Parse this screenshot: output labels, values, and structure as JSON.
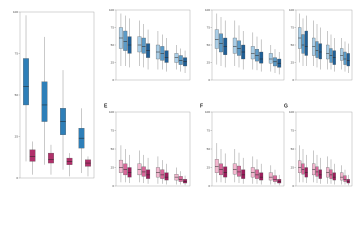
{
  "chart_data": [
    {
      "type": "box",
      "ylim": [
        0,
        100
      ],
      "yticks": [
        0,
        25,
        50,
        75,
        100
      ],
      "series": [
        {
          "color": "#2e7fb8",
          "values": [
            [
              10,
              44,
              55,
              72,
              98
            ],
            [
              8,
              34,
              44,
              58,
              85
            ],
            [
              5,
              26,
              34,
              42,
              65
            ],
            [
              3,
              18,
              24,
              30,
              42
            ]
          ]
        },
        {
          "color": "#b0306a",
          "values": [
            [
              2,
              10,
              13,
              17,
              22
            ],
            [
              2,
              9,
              11,
              15,
              20
            ],
            [
              1,
              8,
              10,
              12,
              15
            ],
            [
              1,
              7,
              9,
              11,
              13
            ]
          ]
        }
      ]
    },
    {
      "type": "box",
      "ylim": [
        0,
        100
      ],
      "yticks": [
        0,
        25,
        50,
        75,
        100
      ],
      "series": [
        {
          "color": "#a9cde6",
          "values": [
            [
              20,
              45,
              60,
              75,
              95
            ],
            [
              20,
              40,
              50,
              62,
              85
            ],
            [
              15,
              30,
              40,
              50,
              70
            ],
            [
              15,
              25,
              32,
              38,
              50
            ]
          ]
        },
        {
          "color": "#5b9bc8",
          "values": [
            [
              20,
              42,
              55,
              70,
              92
            ],
            [
              18,
              38,
              48,
              60,
              80
            ],
            [
              15,
              28,
              38,
              48,
              65
            ],
            [
              12,
              22,
              28,
              35,
              45
            ]
          ]
        },
        {
          "color": "#1f5f96",
          "values": [
            [
              18,
              38,
              50,
              62,
              88
            ],
            [
              15,
              32,
              42,
              52,
              72
            ],
            [
              12,
              25,
              32,
              42,
              60
            ],
            [
              10,
              20,
              26,
              32,
              42
            ]
          ]
        }
      ]
    },
    {
      "type": "box",
      "ylim": [
        0,
        100
      ],
      "yticks": [
        0,
        25,
        50,
        75,
        100
      ],
      "series": [
        {
          "color": "#a9cde6",
          "values": [
            [
              22,
              45,
              58,
              72,
              95
            ],
            [
              20,
              38,
              48,
              60,
              85
            ],
            [
              15,
              30,
              38,
              48,
              68
            ],
            [
              12,
              24,
              30,
              38,
              50
            ]
          ]
        },
        {
          "color": "#5b9bc8",
          "values": [
            [
              20,
              40,
              52,
              66,
              90
            ],
            [
              18,
              35,
              45,
              56,
              78
            ],
            [
              14,
              27,
              35,
              44,
              62
            ],
            [
              10,
              20,
              26,
              32,
              44
            ]
          ]
        },
        {
          "color": "#1f5f96",
          "values": [
            [
              18,
              36,
              48,
              60,
              85
            ],
            [
              15,
              30,
              40,
              50,
              70
            ],
            [
              12,
              24,
              30,
              40,
              58
            ],
            [
              8,
              18,
              24,
              30,
              40
            ]
          ]
        }
      ]
    },
    {
      "type": "box",
      "ylim": [
        0,
        100
      ],
      "yticks": [
        0,
        25,
        50,
        75,
        100
      ],
      "series": [
        {
          "color": "#a9cde6",
          "values": [
            [
              25,
              45,
              60,
              75,
              95
            ],
            [
              20,
              35,
              48,
              60,
              85
            ],
            [
              15,
              30,
              38,
              50,
              70
            ],
            [
              15,
              28,
              35,
              45,
              60
            ]
          ]
        },
        {
          "color": "#5b9bc8",
          "values": [
            [
              20,
              38,
              50,
              65,
              88
            ],
            [
              18,
              32,
              42,
              55,
              80
            ],
            [
              15,
              25,
              35,
              45,
              65
            ],
            [
              12,
              22,
              30,
              40,
              55
            ]
          ]
        },
        {
          "color": "#1f5f96",
          "values": [
            [
              20,
              35,
              48,
              70,
              92
            ],
            [
              15,
              30,
              40,
              52,
              75
            ],
            [
              12,
              22,
              32,
              42,
              60
            ],
            [
              10,
              20,
              28,
              38,
              52
            ]
          ]
        }
      ]
    },
    {
      "type": "box",
      "label": "E",
      "ylim": [
        0,
        100
      ],
      "yticks": [
        0,
        25,
        50,
        75,
        100
      ],
      "series": [
        {
          "color": "#f2b7cf",
          "values": [
            [
              5,
              18,
              25,
              35,
              55
            ],
            [
              5,
              15,
              22,
              30,
              48
            ],
            [
              3,
              12,
              18,
              25,
              40
            ],
            [
              2,
              8,
              12,
              16,
              25
            ]
          ]
        },
        {
          "color": "#d9679a",
          "values": [
            [
              5,
              15,
              22,
              30,
              50
            ],
            [
              4,
              13,
              19,
              26,
              42
            ],
            [
              3,
              10,
              15,
              22,
              35
            ],
            [
              2,
              6,
              9,
              13,
              20
            ]
          ]
        },
        {
          "color": "#9c1d5c",
          "values": [
            [
              4,
              12,
              18,
              25,
              42
            ],
            [
              3,
              10,
              15,
              22,
              38
            ],
            [
              2,
              8,
              12,
              18,
              30
            ],
            [
              1,
              4,
              6,
              9,
              14
            ]
          ]
        }
      ]
    },
    {
      "type": "box",
      "label": "F",
      "ylim": [
        0,
        100
      ],
      "yticks": [
        0,
        25,
        50,
        75,
        100
      ],
      "series": [
        {
          "color": "#f2b7cf",
          "values": [
            [
              5,
              18,
              26,
              36,
              58
            ],
            [
              5,
              16,
              22,
              30,
              50
            ],
            [
              3,
              12,
              18,
              25,
              40
            ],
            [
              2,
              8,
              12,
              18,
              28
            ]
          ]
        },
        {
          "color": "#d9679a",
          "values": [
            [
              5,
              15,
              22,
              30,
              50
            ],
            [
              4,
              13,
              19,
              27,
              45
            ],
            [
              3,
              10,
              15,
              22,
              36
            ],
            [
              2,
              6,
              9,
              14,
              22
            ]
          ]
        },
        {
          "color": "#9c1d5c",
          "values": [
            [
              4,
              12,
              18,
              26,
              44
            ],
            [
              3,
              10,
              15,
              22,
              38
            ],
            [
              2,
              8,
              12,
              18,
              30
            ],
            [
              1,
              4,
              6,
              9,
              15
            ]
          ]
        }
      ]
    },
    {
      "type": "box",
      "label": "G",
      "ylim": [
        0,
        100
      ],
      "yticks": [
        0,
        25,
        50,
        75,
        100
      ],
      "series": [
        {
          "color": "#f2b7cf",
          "values": [
            [
              5,
              18,
              25,
              34,
              55
            ],
            [
              5,
              15,
              22,
              30,
              48
            ],
            [
              3,
              12,
              18,
              25,
              40
            ],
            [
              2,
              8,
              12,
              18,
              28
            ]
          ]
        },
        {
          "color": "#d9679a",
          "values": [
            [
              5,
              16,
              22,
              30,
              50
            ],
            [
              4,
              13,
              19,
              26,
              42
            ],
            [
              3,
              10,
              15,
              22,
              36
            ],
            [
              2,
              6,
              9,
              14,
              22
            ]
          ]
        },
        {
          "color": "#9c1d5c",
          "values": [
            [
              4,
              12,
              18,
              25,
              42
            ],
            [
              3,
              10,
              15,
              22,
              38
            ],
            [
              2,
              8,
              12,
              18,
              30
            ],
            [
              1,
              4,
              6,
              9,
              15
            ]
          ]
        }
      ]
    }
  ]
}
